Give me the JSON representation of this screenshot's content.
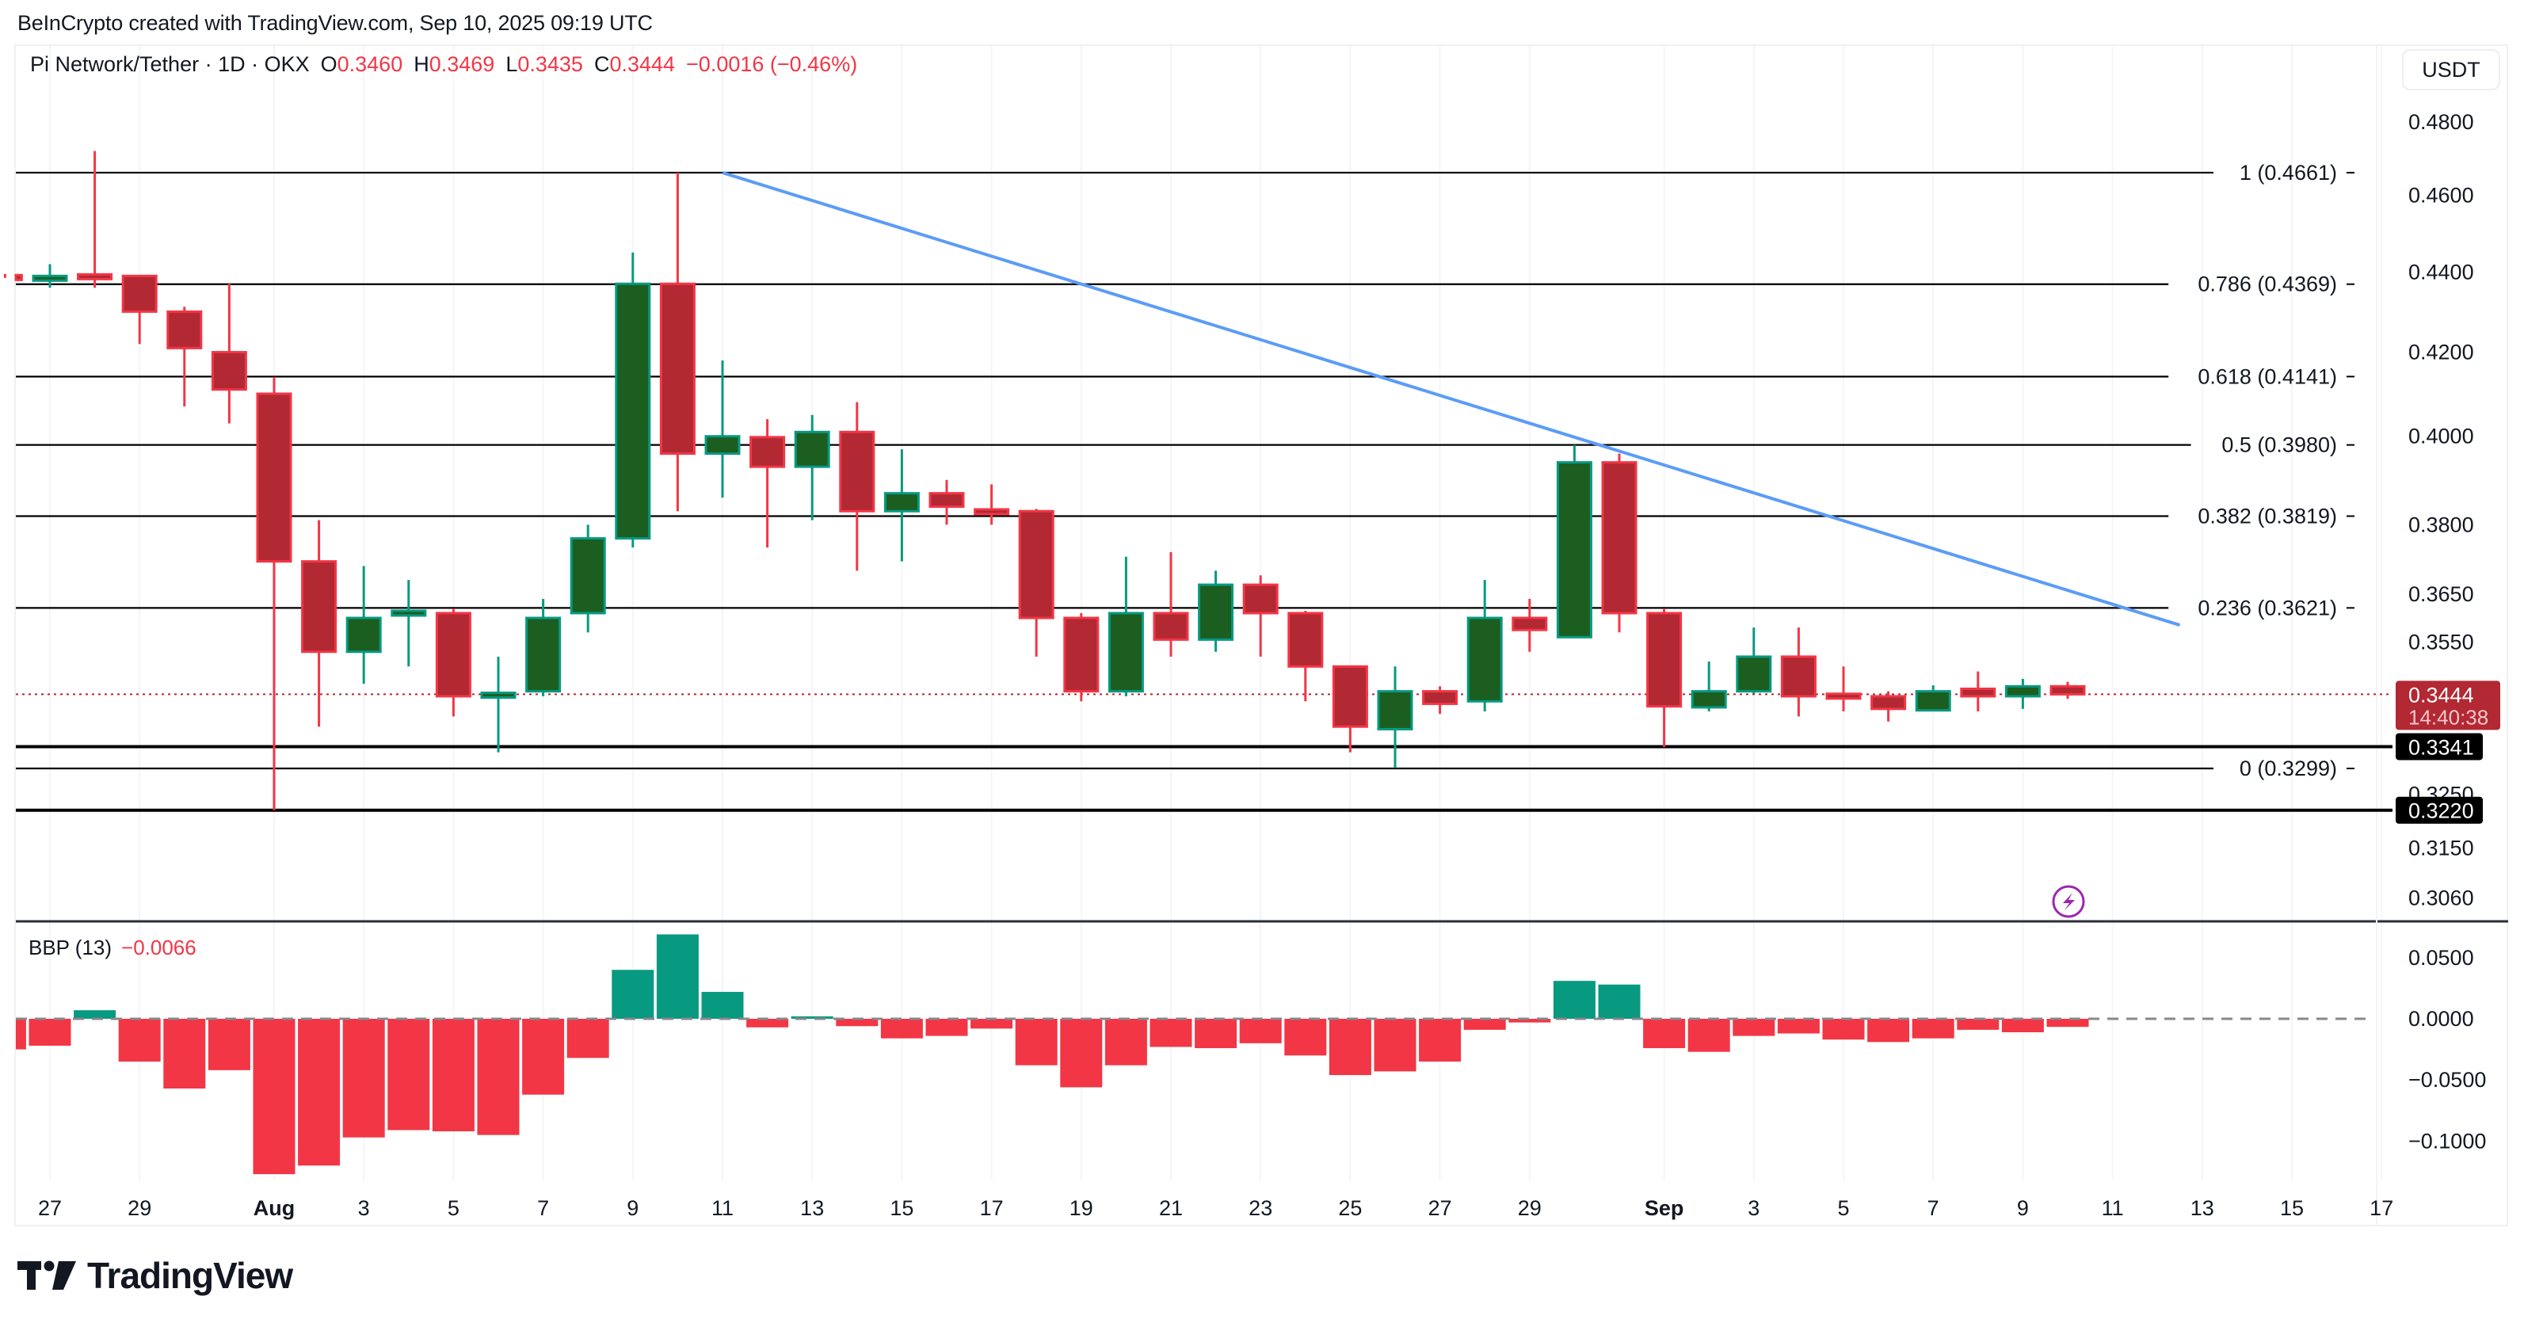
{
  "attribution": "BeInCrypto created with TradingView.com, Sep 10, 2025 09:19 UTC",
  "legend": {
    "symbol": "Pi Network/Tether · 1D · OKX",
    "open_label": "O",
    "open": "0.3460",
    "high_label": "H",
    "high": "0.3469",
    "low_label": "L",
    "low": "0.3435",
    "close_label": "C",
    "close": "0.3444",
    "change": "−0.0016 (−0.46%)"
  },
  "currency_button": "USDT",
  "colors": {
    "up_body": "#1b5e20",
    "up_border": "#089981",
    "down_body": "#b22833",
    "down_border": "#f23645",
    "trendline": "#5b9cf6",
    "hist_up": "#089981",
    "hist_down": "#f23645",
    "last_price_bg": "#b22833",
    "level_label_bg": "#000000",
    "lightning": "#9c27b0"
  },
  "price_axis": {
    "ticks": [
      "0.4800",
      "0.4600",
      "0.4400",
      "0.4200",
      "0.4000",
      "0.3800",
      "0.3650",
      "0.3550",
      "0.3250",
      "0.3150",
      "0.3060"
    ],
    "last_price": "0.3444",
    "countdown": "14:40:38",
    "level_labels": [
      "0.3341",
      "0.3220"
    ]
  },
  "fib_levels": [
    {
      "label": "1 (0.4661)",
      "price": 0.4661
    },
    {
      "label": "0.786 (0.4369)",
      "price": 0.4369
    },
    {
      "label": "0.618 (0.4141)",
      "price": 0.4141
    },
    {
      "label": "0.5 (0.3980)",
      "price": 0.398
    },
    {
      "label": "0.382 (0.3819)",
      "price": 0.3819
    },
    {
      "label": "0.236 (0.3621)",
      "price": 0.3621
    },
    {
      "label": "0 (0.3299)",
      "price": 0.3299
    }
  ],
  "horizontal_levels": [
    0.3341,
    0.322
  ],
  "trendline": {
    "from": {
      "day": 15,
      "price": 0.4661
    },
    "to": {
      "day": 47.5,
      "price": 0.3585
    }
  },
  "bbp": {
    "label": "BBP (13)",
    "value": "−0.0066",
    "ticks": [
      "0.0500",
      "0.0000",
      "−0.0500",
      "−0.1000"
    ]
  },
  "x_axis": {
    "labels": [
      {
        "day": 0,
        "text": "27"
      },
      {
        "day": 2,
        "text": "29"
      },
      {
        "day": 5,
        "text": "Aug",
        "bold": true
      },
      {
        "day": 7,
        "text": "3"
      },
      {
        "day": 9,
        "text": "5"
      },
      {
        "day": 11,
        "text": "7"
      },
      {
        "day": 13,
        "text": "9"
      },
      {
        "day": 15,
        "text": "11"
      },
      {
        "day": 17,
        "text": "13"
      },
      {
        "day": 19,
        "text": "15"
      },
      {
        "day": 21,
        "text": "17"
      },
      {
        "day": 23,
        "text": "19"
      },
      {
        "day": 25,
        "text": "21"
      },
      {
        "day": 27,
        "text": "23"
      },
      {
        "day": 29,
        "text": "25"
      },
      {
        "day": 31,
        "text": "27"
      },
      {
        "day": 33,
        "text": "29"
      },
      {
        "day": 36,
        "text": "Sep",
        "bold": true
      },
      {
        "day": 38,
        "text": "3"
      },
      {
        "day": 40,
        "text": "5"
      },
      {
        "day": 42,
        "text": "7"
      },
      {
        "day": 44,
        "text": "9"
      },
      {
        "day": 46,
        "text": "11"
      },
      {
        "day": 48,
        "text": "13"
      },
      {
        "day": 50,
        "text": "15"
      },
      {
        "day": 52,
        "text": "17"
      }
    ]
  },
  "logo_text": "TradingView",
  "chart_data": {
    "type": "candlestick",
    "title": "Pi Network/Tether · 1D · OKX",
    "xlabel": "",
    "ylabel": "USDT",
    "y_scale": "log",
    "ylim": [
      0.306,
      0.48
    ],
    "candles": [
      {
        "date": "Jul 26",
        "o": 0.4392,
        "h": 0.4395,
        "l": 0.4385,
        "c": 0.4388
      },
      {
        "date": "Jul 27",
        "o": 0.4382,
        "h": 0.442,
        "l": 0.436,
        "c": 0.439
      },
      {
        "date": "Jul 28",
        "o": 0.4394,
        "h": 0.472,
        "l": 0.436,
        "c": 0.4387
      },
      {
        "date": "Jul 29",
        "o": 0.439,
        "h": 0.439,
        "l": 0.422,
        "c": 0.43
      },
      {
        "date": "Jul 30",
        "o": 0.43,
        "h": 0.4312,
        "l": 0.407,
        "c": 0.421
      },
      {
        "date": "Jul 31",
        "o": 0.42,
        "h": 0.437,
        "l": 0.403,
        "c": 0.411
      },
      {
        "date": "Aug 1",
        "o": 0.41,
        "h": 0.414,
        "l": 0.322,
        "c": 0.372
      },
      {
        "date": "Aug 2",
        "o": 0.372,
        "h": 0.381,
        "l": 0.338,
        "c": 0.353
      },
      {
        "date": "Aug 3",
        "o": 0.353,
        "h": 0.371,
        "l": 0.3465,
        "c": 0.36
      },
      {
        "date": "Aug 4",
        "o": 0.3605,
        "h": 0.368,
        "l": 0.35,
        "c": 0.3615
      },
      {
        "date": "Aug 5",
        "o": 0.361,
        "h": 0.362,
        "l": 0.34,
        "c": 0.344
      },
      {
        "date": "Aug 6",
        "o": 0.344,
        "h": 0.352,
        "l": 0.333,
        "c": 0.3447
      },
      {
        "date": "Aug 7",
        "o": 0.345,
        "h": 0.364,
        "l": 0.344,
        "c": 0.36
      },
      {
        "date": "Aug 8",
        "o": 0.361,
        "h": 0.38,
        "l": 0.357,
        "c": 0.377
      },
      {
        "date": "Aug 9",
        "o": 0.377,
        "h": 0.445,
        "l": 0.375,
        "c": 0.437
      },
      {
        "date": "Aug 10",
        "o": 0.437,
        "h": 0.4661,
        "l": 0.383,
        "c": 0.396
      },
      {
        "date": "Aug 11",
        "o": 0.396,
        "h": 0.418,
        "l": 0.386,
        "c": 0.4
      },
      {
        "date": "Aug 12",
        "o": 0.3998,
        "h": 0.404,
        "l": 0.375,
        "c": 0.393
      },
      {
        "date": "Aug 13",
        "o": 0.393,
        "h": 0.405,
        "l": 0.381,
        "c": 0.401
      },
      {
        "date": "Aug 14",
        "o": 0.401,
        "h": 0.408,
        "l": 0.37,
        "c": 0.383
      },
      {
        "date": "Aug 15",
        "o": 0.383,
        "h": 0.397,
        "l": 0.372,
        "c": 0.387
      },
      {
        "date": "Aug 16",
        "o": 0.387,
        "h": 0.39,
        "l": 0.38,
        "c": 0.384
      },
      {
        "date": "Aug 17",
        "o": 0.3834,
        "h": 0.389,
        "l": 0.38,
        "c": 0.3826
      },
      {
        "date": "Aug 18",
        "o": 0.383,
        "h": 0.3835,
        "l": 0.352,
        "c": 0.36
      },
      {
        "date": "Aug 19",
        "o": 0.36,
        "h": 0.361,
        "l": 0.343,
        "c": 0.345
      },
      {
        "date": "Aug 20",
        "o": 0.345,
        "h": 0.373,
        "l": 0.344,
        "c": 0.361
      },
      {
        "date": "Aug 21",
        "o": 0.361,
        "h": 0.374,
        "l": 0.352,
        "c": 0.3555
      },
      {
        "date": "Aug 22",
        "o": 0.3555,
        "h": 0.37,
        "l": 0.353,
        "c": 0.367
      },
      {
        "date": "Aug 23",
        "o": 0.367,
        "h": 0.369,
        "l": 0.352,
        "c": 0.361
      },
      {
        "date": "Aug 24",
        "o": 0.361,
        "h": 0.3615,
        "l": 0.343,
        "c": 0.35
      },
      {
        "date": "Aug 25",
        "o": 0.35,
        "h": 0.3502,
        "l": 0.333,
        "c": 0.338
      },
      {
        "date": "Aug 26",
        "o": 0.3375,
        "h": 0.35,
        "l": 0.33,
        "c": 0.345
      },
      {
        "date": "Aug 27",
        "o": 0.345,
        "h": 0.346,
        "l": 0.3405,
        "c": 0.3425
      },
      {
        "date": "Aug 28",
        "o": 0.343,
        "h": 0.368,
        "l": 0.341,
        "c": 0.36
      },
      {
        "date": "Aug 29",
        "o": 0.36,
        "h": 0.364,
        "l": 0.353,
        "c": 0.3575
      },
      {
        "date": "Aug 30",
        "o": 0.356,
        "h": 0.398,
        "l": 0.3558,
        "c": 0.394
      },
      {
        "date": "Aug 31",
        "o": 0.394,
        "h": 0.396,
        "l": 0.357,
        "c": 0.361
      },
      {
        "date": "Sep 1",
        "o": 0.361,
        "h": 0.362,
        "l": 0.334,
        "c": 0.342
      },
      {
        "date": "Sep 2",
        "o": 0.3418,
        "h": 0.351,
        "l": 0.341,
        "c": 0.345
      },
      {
        "date": "Sep 3",
        "o": 0.345,
        "h": 0.358,
        "l": 0.3445,
        "c": 0.352
      },
      {
        "date": "Sep 4",
        "o": 0.352,
        "h": 0.358,
        "l": 0.34,
        "c": 0.344
      },
      {
        "date": "Sep 5",
        "o": 0.3445,
        "h": 0.35,
        "l": 0.341,
        "c": 0.344
      },
      {
        "date": "Sep 6",
        "o": 0.344,
        "h": 0.345,
        "l": 0.339,
        "c": 0.3415
      },
      {
        "date": "Sep 7",
        "o": 0.3412,
        "h": 0.3462,
        "l": 0.341,
        "c": 0.345
      },
      {
        "date": "Sep 8",
        "o": 0.3455,
        "h": 0.349,
        "l": 0.341,
        "c": 0.344
      },
      {
        "date": "Sep 9",
        "o": 0.344,
        "h": 0.3475,
        "l": 0.3415,
        "c": 0.346
      },
      {
        "date": "Sep 10",
        "o": 0.346,
        "h": 0.3469,
        "l": 0.3435,
        "c": 0.3444
      }
    ],
    "series": [
      {
        "name": "BBP (13)",
        "type": "histogram",
        "values": [
          -0.025,
          -0.022,
          0.007,
          -0.035,
          -0.057,
          -0.042,
          -0.127,
          -0.12,
          -0.097,
          -0.091,
          -0.092,
          -0.095,
          -0.062,
          -0.032,
          0.04,
          0.069,
          0.022,
          -0.007,
          0.002,
          -0.006,
          -0.016,
          -0.014,
          -0.008,
          -0.038,
          -0.056,
          -0.038,
          -0.023,
          -0.024,
          -0.02,
          -0.03,
          -0.046,
          -0.043,
          -0.035,
          -0.009,
          -0.003,
          0.031,
          0.028,
          -0.024,
          -0.027,
          -0.014,
          -0.012,
          -0.017,
          -0.019,
          -0.016,
          -0.009,
          -0.011,
          -0.0066
        ]
      }
    ],
    "annotations": [
      "Fib retracement 0 (0.3299) to 1 (0.4661)",
      "Descending trendline from Aug 10 high 0.4661",
      "Horizontal support 0.3341",
      "Horizontal support 0.3220"
    ]
  }
}
